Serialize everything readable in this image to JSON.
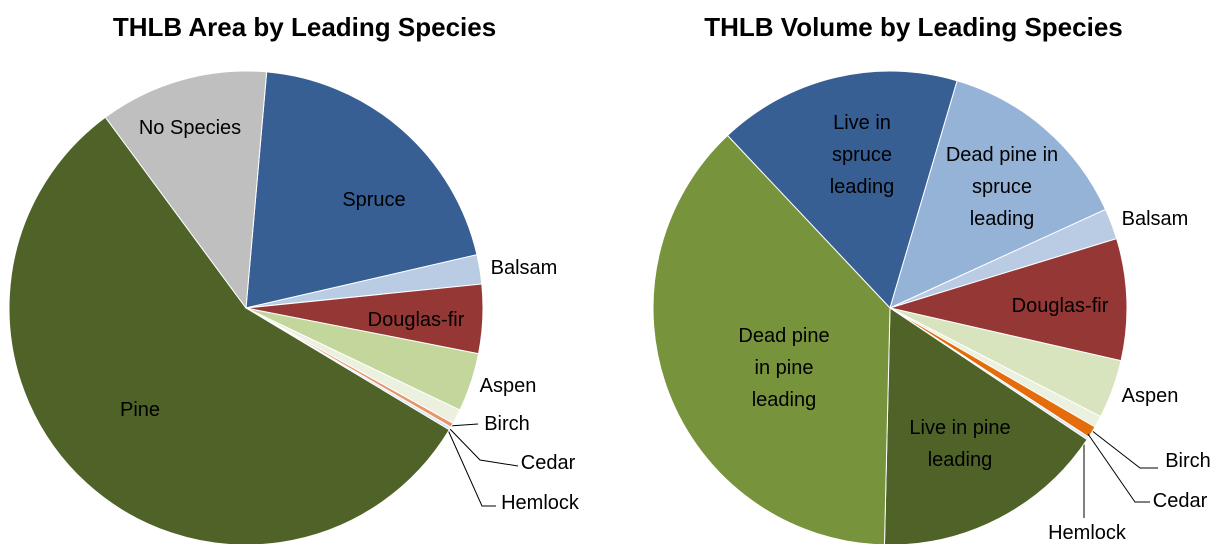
{
  "chart_data": [
    {
      "type": "pie",
      "title": "THLB Area by Leading Species",
      "categories": [
        "Spruce",
        "Balsam",
        "Douglas-fir",
        "Aspen",
        "Birch",
        "Cedar",
        "Hemlock",
        "Pine",
        "No Species"
      ],
      "values": [
        20,
        2,
        4.7,
        4,
        1,
        0.3,
        0.2,
        56.3,
        11.5
      ],
      "colors": [
        "#375f93",
        "#b9cce4",
        "#953735",
        "#c3d69b",
        "#ebf1de",
        "#e6946a",
        "#dce6f2",
        "#4f6228",
        "#bfbfbf"
      ]
    },
    {
      "type": "pie",
      "title": "THLB Volume by Leading Species",
      "categories": [
        "Live in spruce leading",
        "Dead pine in spruce leading",
        "Balsam",
        "Douglas-fir",
        "Aspen",
        "Birch",
        "Cedar",
        "Hemlock",
        "Live in pine leading",
        "Dead pine in pine leading"
      ],
      "values": [
        16.6,
        13.6,
        2.1,
        8.3,
        4,
        0.8,
        0.8,
        0.2,
        16,
        37.6
      ],
      "colors": [
        "#375f93",
        "#95b3d7",
        "#b9cce4",
        "#953735",
        "#d7e4bd",
        "#ebf1de",
        "#e46c0a",
        "#dce6f2",
        "#4f6228",
        "#77933c"
      ]
    }
  ]
}
